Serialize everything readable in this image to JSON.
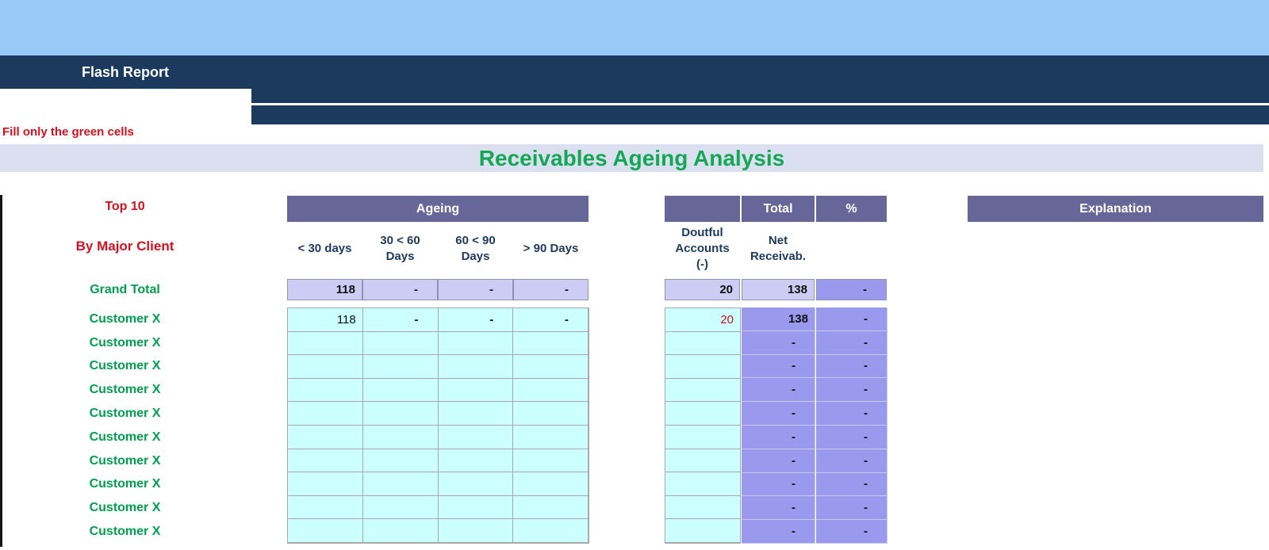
{
  "palette": {
    "banner_blue": "#99c9f7",
    "navy": "#1c3a5e",
    "title_band_lavender": "#dae0f0",
    "header_purple": "#666699",
    "cell_lavender": "#ccccf5",
    "cell_periwinkle": "#9999ee",
    "cell_cyan": "#ccffff",
    "green_text": "#00a14e",
    "green_title": "#14a854",
    "red_text": "#d8101e"
  },
  "header": {
    "report_title": "Flash Report",
    "note": "Fill only the green cells",
    "page_title": "Receivables Ageing Analysis"
  },
  "labels": {
    "top": "Top 10",
    "sub": "By Major Client",
    "grand_total": "Grand Total"
  },
  "table": {
    "ageing_header": "Ageing",
    "ageing_columns": [
      "< 30 days",
      "30 < 60\nDays",
      "60 < 90\nDays",
      "> 90 Days"
    ],
    "total_header": "Total",
    "percent_header": "%",
    "doubtful_header": "Doutful\nAccounts\n(-)",
    "net_header": "Net\nReceivab.",
    "explanation_header": "Explanation"
  },
  "grand_total": {
    "ageing": [
      "118",
      "-",
      "-",
      "-"
    ],
    "doubtful": "20",
    "net": "138",
    "percent": "-"
  },
  "rows": [
    {
      "label": "Customer X",
      "ageing": [
        "118",
        "-",
        "-",
        "-"
      ],
      "doubtful": "20",
      "net": "138",
      "percent": "-"
    },
    {
      "label": "Customer X",
      "ageing": [
        "",
        "",
        "",
        ""
      ],
      "doubtful": "",
      "net": "-",
      "percent": "-"
    },
    {
      "label": "Customer X",
      "ageing": [
        "",
        "",
        "",
        ""
      ],
      "doubtful": "",
      "net": "-",
      "percent": "-"
    },
    {
      "label": "Customer X",
      "ageing": [
        "",
        "",
        "",
        ""
      ],
      "doubtful": "",
      "net": "-",
      "percent": "-"
    },
    {
      "label": "Customer X",
      "ageing": [
        "",
        "",
        "",
        ""
      ],
      "doubtful": "",
      "net": "-",
      "percent": "-"
    },
    {
      "label": "Customer X",
      "ageing": [
        "",
        "",
        "",
        ""
      ],
      "doubtful": "",
      "net": "-",
      "percent": "-"
    },
    {
      "label": "Customer X",
      "ageing": [
        "",
        "",
        "",
        ""
      ],
      "doubtful": "",
      "net": "-",
      "percent": "-"
    },
    {
      "label": "Customer X",
      "ageing": [
        "",
        "",
        "",
        ""
      ],
      "doubtful": "",
      "net": "-",
      "percent": "-"
    },
    {
      "label": "Customer X",
      "ageing": [
        "",
        "",
        "",
        ""
      ],
      "doubtful": "",
      "net": "-",
      "percent": "-"
    },
    {
      "label": "Customer X",
      "ageing": [
        "",
        "",
        "",
        ""
      ],
      "doubtful": "",
      "net": "-",
      "percent": "-"
    }
  ]
}
